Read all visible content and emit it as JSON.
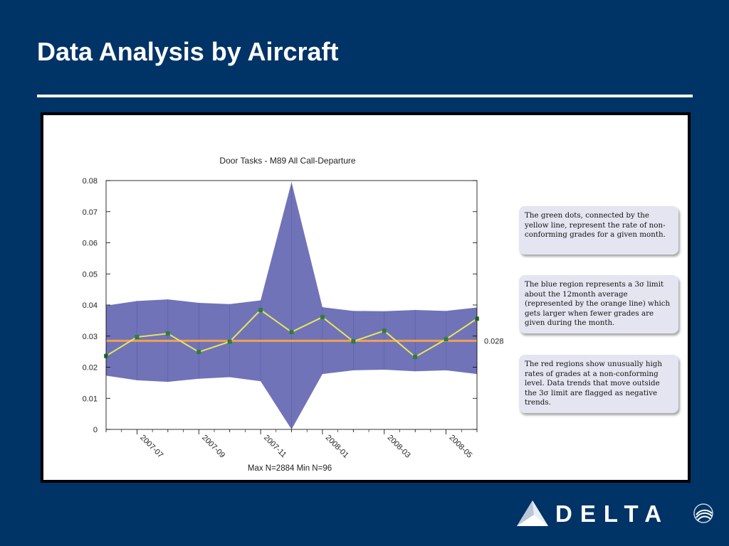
{
  "slide": {
    "title": "Data Analysis by Aircraft",
    "brand": "DELTA",
    "skyteam": "SKYTEAM"
  },
  "notes": [
    "The green dots, connected by the yellow line, represent the rate of non-conforming grades for a given month.",
    "The blue region represents a 3σ limit about the 12month average (represented by the orange line) which gets larger when fewer grades are given during the month.",
    "The red regions show unusually high rates of grades at a non-conforming level.  Data trends that move outside the 3σ limit are flagged as negative trends."
  ],
  "chart_data": {
    "type": "line",
    "title": "Door Tasks - M89 All Call-Departure",
    "caption": "Max N=2884 Min N=96",
    "xlabel": "",
    "ylabel": "",
    "x": [
      "2007-06",
      "2007-07",
      "2007-08",
      "2007-09",
      "2007-10",
      "2007-11",
      "2007-12",
      "2008-01",
      "2008-02",
      "2008-03",
      "2008-04",
      "2008-05",
      "2008-06"
    ],
    "x_tick_labels": [
      "2007-07",
      "2007-09",
      "2007-11",
      "2008-01",
      "2008-03",
      "2008-05"
    ],
    "y_ticks": [
      "0",
      "0.01",
      "0.02",
      "0.03",
      "0.04",
      "0.05",
      "0.06",
      "0.07",
      "0.08"
    ],
    "ylim": [
      0,
      0.08
    ],
    "grid": false,
    "series": [
      {
        "role": "rate",
        "values": [
          0.0236,
          0.0297,
          0.0308,
          0.0249,
          0.0282,
          0.0384,
          0.0313,
          0.0361,
          0.0283,
          0.0317,
          0.0233,
          0.029,
          0.0356
        ],
        "color": "#e6e65a",
        "marker_color": "#2e7d3a"
      },
      {
        "role": "average",
        "values": [
          0.0285,
          0.0285,
          0.0285,
          0.0285,
          0.0285,
          0.0285,
          0.0285,
          0.0285,
          0.0285,
          0.0285,
          0.0285,
          0.0285,
          0.0285
        ],
        "color": "#f0a050",
        "end_label": "0.028"
      },
      {
        "role": "upper_limit",
        "values": [
          0.0398,
          0.0413,
          0.0418,
          0.0407,
          0.0403,
          0.0415,
          0.0795,
          0.0393,
          0.0381,
          0.038,
          0.0384,
          0.0381,
          0.0392
        ]
      },
      {
        "role": "lower_limit",
        "values": [
          0.0173,
          0.0158,
          0.0153,
          0.0163,
          0.0168,
          0.0155,
          0.0,
          0.0178,
          0.019,
          0.0192,
          0.0187,
          0.019,
          0.0178
        ]
      }
    ],
    "band_color": "#7073b8"
  }
}
